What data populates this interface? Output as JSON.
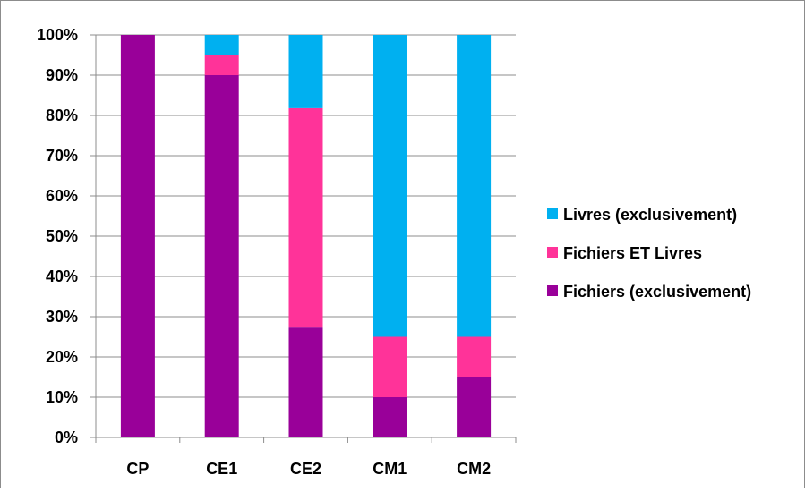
{
  "chart_data": {
    "type": "bar",
    "stacked": true,
    "normalized_percent": true,
    "categories": [
      "CP",
      "CE1",
      "CE2",
      "CM1",
      "CM2"
    ],
    "series": [
      {
        "name": "Fichiers (exclusivement)",
        "color": "#990099",
        "values": [
          100,
          90,
          27.3,
          10,
          15
        ]
      },
      {
        "name": "Fichiers ET Livres",
        "color": "#ff3399",
        "values": [
          0,
          5,
          54.5,
          15,
          10
        ]
      },
      {
        "name": "Livres (exclusivement)",
        "color": "#00b0f0",
        "values": [
          0,
          5,
          18.2,
          75,
          75
        ]
      }
    ],
    "yticks": [
      "0%",
      "10%",
      "20%",
      "30%",
      "40%",
      "50%",
      "60%",
      "70%",
      "80%",
      "90%",
      "100%"
    ],
    "ylim": [
      0,
      100
    ],
    "grid": true,
    "legend_position": "right",
    "legend_order": [
      "Livres (exclusivement)",
      "Fichiers ET Livres",
      "Fichiers (exclusivement)"
    ],
    "title": "",
    "xlabel": "",
    "ylabel": ""
  }
}
